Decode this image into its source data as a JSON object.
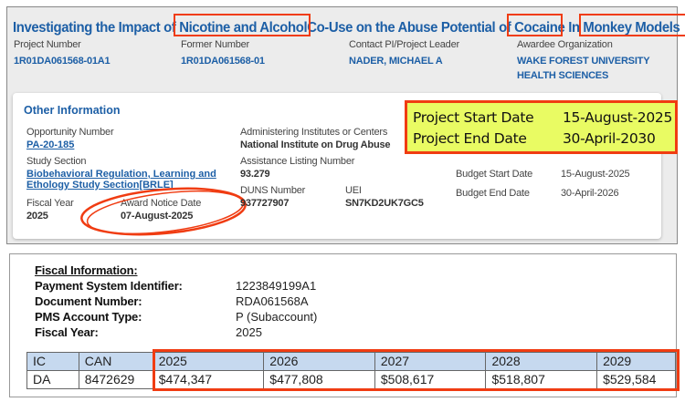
{
  "header": {
    "title_parts": [
      "Investigating the Impact of ",
      "Nicotine and Alcohol",
      "Co-Use on the Abuse Potential of ",
      "Cocaine",
      " In ",
      "Monkey Models"
    ],
    "fields": [
      {
        "label": "Project Number",
        "value": "1R01DA061568-01A1"
      },
      {
        "label": "Former Number",
        "value": "1R01DA061568-01"
      },
      {
        "label": "Contact PI/Project Leader",
        "value": "NADER, MICHAEL A"
      },
      {
        "label": "Awardee Organization",
        "value": "WAKE FOREST UNIVERSITY",
        "value2": "HEALTH SCIENCES"
      }
    ]
  },
  "other": {
    "heading": "Other Information",
    "opportunity": {
      "label": "Opportunity Number",
      "value": "PA-20-185"
    },
    "study": {
      "label": "Study Section",
      "value1": "Biobehavioral Regulation, Learning and",
      "value2": "Ethology Study Section[BRLE]"
    },
    "fiscal_year": {
      "label": "Fiscal Year",
      "value": "2025"
    },
    "award_notice": {
      "label": "Award Notice Date",
      "value": "07-August-2025"
    },
    "institute": {
      "label": "Administering Institutes or Centers",
      "value": "National Institute on Drug Abuse"
    },
    "assistance": {
      "label": "Assistance Listing Number",
      "value": "93.279"
    },
    "duns": {
      "label": "DUNS Number",
      "value": "937727907"
    },
    "uei": {
      "label": "UEI",
      "value": "SN7KD2UK7GC5"
    },
    "budget_start": {
      "label": "Budget Start Date",
      "value": "15-August-2025"
    },
    "budget_end": {
      "label": "Budget End Date",
      "value": "30-April-2026"
    },
    "project_start": {
      "label": "Project Start Date",
      "value": "15-August-2025"
    },
    "project_end": {
      "label": "Project End Date",
      "value": "30-April-2030"
    }
  },
  "fiscal": {
    "heading": "Fiscal Information:",
    "rows": [
      {
        "label": "Payment System Identifier:",
        "value": "1223849199A1"
      },
      {
        "label": "Document Number:",
        "value": "RDA061568A"
      },
      {
        "label": "PMS Account Type:",
        "value": "P (Subaccount)"
      },
      {
        "label": "Fiscal Year:",
        "value": "2025"
      }
    ],
    "table": {
      "headers": [
        "IC",
        "CAN",
        "2025",
        "2026",
        "2027",
        "2028",
        "2029"
      ],
      "row": [
        "DA",
        "8472629",
        "$474,347",
        "$477,808",
        "$508,617",
        "$518,807",
        "$529,584"
      ]
    }
  },
  "colors": {
    "highlight": "#f03c12",
    "link": "#1d5fa6",
    "yellow": "#e9fb63"
  }
}
